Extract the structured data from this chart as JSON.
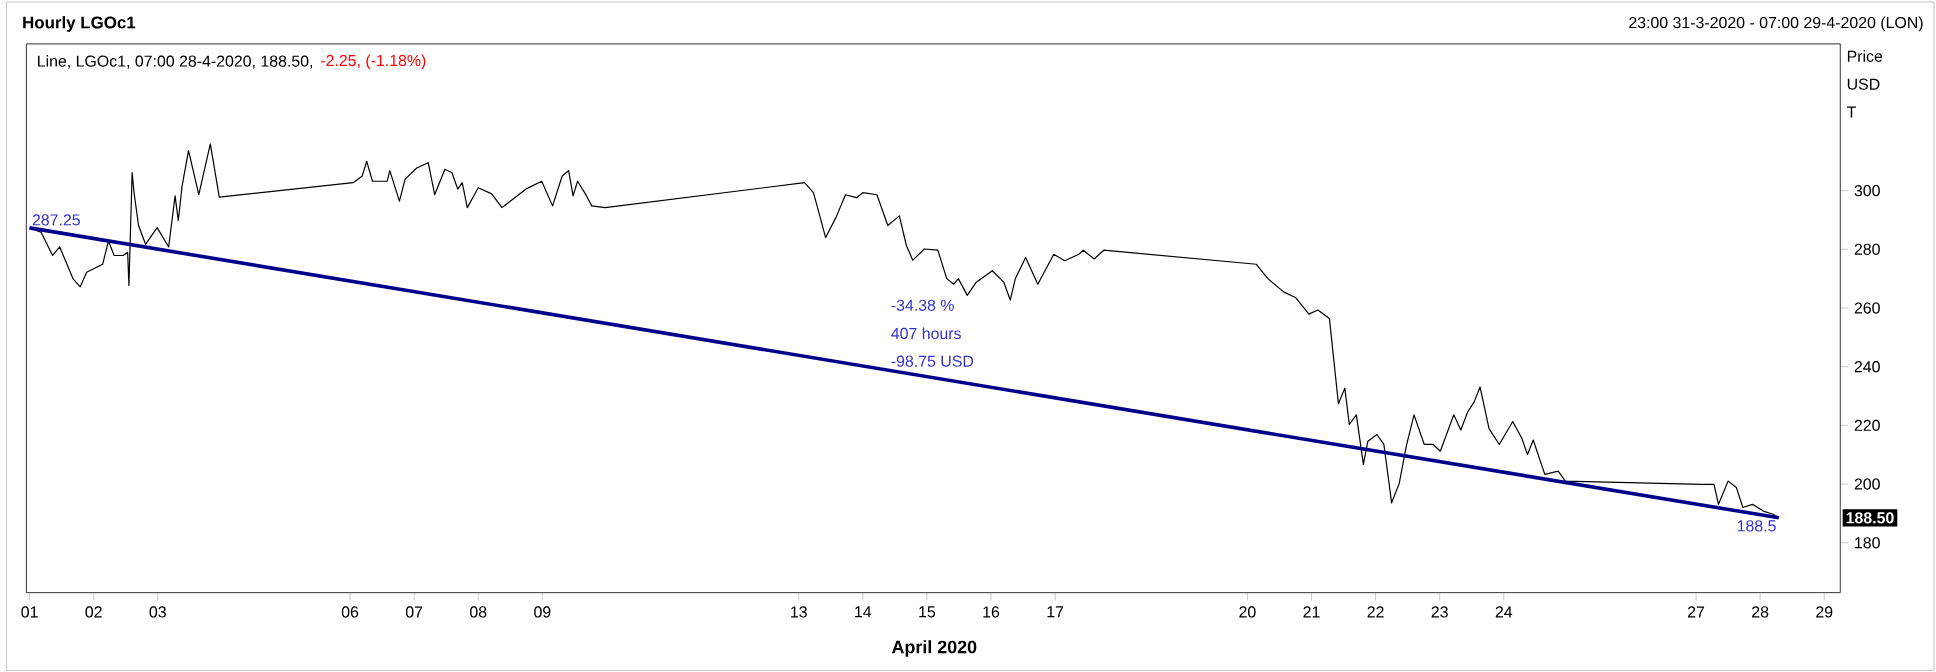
{
  "chart_data": {
    "type": "line",
    "title": "Hourly LGOc1",
    "subtitle": "Line, LGOc1, 07:00 28-4-2020, 188.50,",
    "xlabel": "April 2020",
    "ylabel": "Price USD T",
    "annotations": [
      "-2.25, (-1.18%)",
      "23:00 31-3-2020 - 07:00 29-4-2020 (LON)",
      "287.25",
      "188.5",
      "-34.38 %",
      "407 hours",
      "-98.75 USD",
      "188.50"
    ],
    "series": [
      {
        "color": "#000000",
        "x": [
          "2020-04-01T00:00",
          "2020-04-01T04:19",
          "2020-04-01T08:38",
          "2020-04-01T11:17",
          "2020-04-01T13:41",
          "2020-04-01T16:19",
          "2020-04-01T18:58",
          "2020-04-01T21:22",
          "2020-04-02T03:22",
          "2020-04-02T05:31",
          "2020-04-02T07:41",
          "2020-04-02T11:02",
          "2020-04-02T12:43",
          "2020-04-02T13:12",
          "2020-04-02T14:24",
          "2020-04-02T15:07",
          "2020-04-02T16:48",
          "2020-04-02T19:26",
          "2020-04-02T23:46",
          "2020-04-03T04:05",
          "2020-04-03T06:29",
          "2020-04-03T07:41",
          "2020-04-03T09:07",
          "2020-04-03T11:31",
          "2020-04-03T15:22",
          "2020-04-03T19:41",
          "2020-04-03T23:02",
          "2020-04-06T01:12",
          "2020-04-06T04:34",
          "2020-04-06T06:14",
          "2020-04-06T08:24",
          "2020-04-06T13:55",
          "2020-04-06T14:53",
          "2020-04-06T18:29",
          "2020-04-06T20:38",
          "2020-04-07T00:58",
          "2020-04-07T05:17",
          "2020-04-07T07:41",
          "2020-04-07T11:31",
          "2020-04-07T14:10",
          "2020-04-07T16:19",
          "2020-04-07T18:00",
          "2020-04-07T19:55",
          "2020-04-08T00:00",
          "2020-04-08T05:02",
          "2020-04-08T08:53",
          "2020-04-08T17:46",
          "2020-04-08T23:46",
          "2020-04-09T03:50",
          "2020-04-09T07:26",
          "2020-04-09T09:50",
          "2020-04-09T11:31",
          "2020-04-09T13:12",
          "2020-04-09T16:34",
          "2020-04-09T18:29",
          "2020-04-09T23:31",
          "2020-04-13T02:10",
          "2020-04-13T05:31",
          "2020-04-13T10:05",
          "2020-04-13T13:55",
          "2020-04-13T17:31",
          "2020-04-13T21:36",
          "2020-04-14T00:00",
          "2020-04-14T05:17",
          "2020-04-14T09:22",
          "2020-04-14T13:41",
          "2020-04-14T16:19",
          "2020-04-14T18:43",
          "2020-04-14T23:02",
          "2020-04-15T04:05",
          "2020-04-15T07:26",
          "2020-04-15T10:05",
          "2020-04-15T11:46",
          "2020-04-15T15:07",
          "2020-04-15T18:29",
          "2020-04-16T00:29",
          "2020-04-16T04:48",
          "2020-04-16T07:12",
          "2020-04-16T09:07",
          "2020-04-16T12:58",
          "2020-04-16T17:31",
          "2020-04-16T23:31",
          "2020-04-17T03:36",
          "2020-04-17T08:53",
          "2020-04-17T10:34",
          "2020-04-17T14:38",
          "2020-04-17T18:14",
          "2020-04-20T03:22",
          "2020-04-20T07:41",
          "2020-04-20T13:41",
          "2020-04-20T18:00",
          "2020-04-20T23:02",
          "2020-04-21T02:24",
          "2020-04-21T06:43",
          "2020-04-21T10:05",
          "2020-04-21T12:29",
          "2020-04-21T14:10",
          "2020-04-21T16:48",
          "2020-04-21T19:26",
          "2020-04-21T21:07",
          "2020-04-22T00:29",
          "2020-04-22T03:07",
          "2020-04-22T06:00",
          "2020-04-22T08:53",
          "2020-04-22T11:31",
          "2020-04-22T14:24",
          "2020-04-22T18:14",
          "2020-04-22T21:36",
          "2020-04-23T00:14",
          "2020-04-23T05:17",
          "2020-04-23T07:55",
          "2020-04-23T10:34",
          "2020-04-23T12:58",
          "2020-04-23T15:07",
          "2020-04-23T18:29",
          "2020-04-23T22:19",
          "2020-04-24T03:22",
          "2020-04-24T06:43",
          "2020-04-24T08:53",
          "2020-04-24T11:02",
          "2020-04-24T15:22",
          "2020-04-24T20:24",
          "2020-04-24T23:02",
          "2020-04-27T02:24",
          "2020-04-27T06:43",
          "2020-04-27T08:24",
          "2020-04-27T12:00",
          "2020-04-27T15:07",
          "2020-04-27T17:31",
          "2020-04-27T21:07",
          "2020-04-28T01:12",
          "2020-04-28T04:48",
          "2020-04-28T07:00"
        ],
        "values": [
          287.3,
          285.8,
          277.9,
          280.8,
          275.6,
          269.9,
          267.2,
          272.2,
          274.9,
          282.8,
          277.9,
          277.9,
          279.0,
          267.7,
          306.1,
          299.3,
          288.1,
          281.7,
          287.4,
          280.8,
          298.2,
          289.8,
          301.6,
          313.6,
          298.6,
          315.9,
          297.8,
          302.7,
          305.0,
          310.0,
          303.2,
          303.2,
          306.8,
          296.4,
          303.9,
          307.7,
          309.5,
          298.6,
          307.3,
          306.1,
          300.5,
          302.7,
          294.2,
          301.0,
          298.9,
          294.2,
          300.5,
          303.2,
          294.8,
          305.0,
          306.8,
          298.2,
          303.2,
          298.2,
          294.8,
          294.2,
          302.7,
          299.3,
          284.0,
          290.8,
          298.6,
          297.6,
          299.3,
          298.6,
          288.1,
          291.4,
          281.3,
          276.3,
          280.1,
          279.7,
          270.0,
          268.1,
          270.0,
          264.3,
          268.8,
          272.7,
          268.8,
          262.7,
          270.0,
          277.2,
          268.1,
          278.3,
          276.1,
          278.3,
          279.7,
          276.7,
          279.7,
          274.9,
          270.0,
          265.4,
          263.6,
          257.9,
          259.3,
          256.4,
          227.4,
          232.7,
          220.3,
          223.6,
          206.7,
          214.6,
          216.9,
          213.5,
          193.6,
          200.3,
          213.0,
          223.6,
          213.5,
          213.5,
          211.2,
          223.6,
          218.4,
          224.7,
          228.1,
          233.1,
          218.9,
          213.5,
          221.3,
          215.7,
          210.1,
          215.0,
          203.3,
          204.4,
          201.0,
          199.9,
          199.9,
          193.1,
          201.0,
          198.8,
          192.0,
          193.1,
          190.8,
          189.7,
          188.5
        ]
      },
      {
        "color": "#00008b",
        "x": [
          "2020-04-01T00:00",
          "2020-04-28T07:00"
        ],
        "values": [
          287.3,
          188.5
        ]
      }
    ],
    "xlim": [
      "2020-03-31T22:48",
      "2020-04-29T06:00"
    ],
    "ylim": [
      163,
      350
    ],
    "xticks": [
      {
        "value": "2020-04-01",
        "label": "01"
      },
      {
        "value": "2020-04-02",
        "label": "02"
      },
      {
        "value": "2020-04-03",
        "label": "03"
      },
      {
        "value": "2020-04-06",
        "label": "06"
      },
      {
        "value": "2020-04-07",
        "label": "07"
      },
      {
        "value": "2020-04-08",
        "label": "08"
      },
      {
        "value": "2020-04-09",
        "label": "09"
      },
      {
        "value": "2020-04-13",
        "label": "13"
      },
      {
        "value": "2020-04-14",
        "label": "14"
      },
      {
        "value": "2020-04-15",
        "label": "15"
      },
      {
        "value": "2020-04-16",
        "label": "16"
      },
      {
        "value": "2020-04-17",
        "label": "17"
      },
      {
        "value": "2020-04-20",
        "label": "20"
      },
      {
        "value": "2020-04-21",
        "label": "21"
      },
      {
        "value": "2020-04-22",
        "label": "22"
      },
      {
        "value": "2020-04-23",
        "label": "23"
      },
      {
        "value": "2020-04-24",
        "label": "24"
      },
      {
        "value": "2020-04-27",
        "label": "27"
      },
      {
        "value": "2020-04-28",
        "label": "28"
      },
      {
        "value": "2020-04-29",
        "label": "29"
      }
    ],
    "yticks": [
      180,
      200,
      220,
      240,
      260,
      280,
      300
    ]
  }
}
